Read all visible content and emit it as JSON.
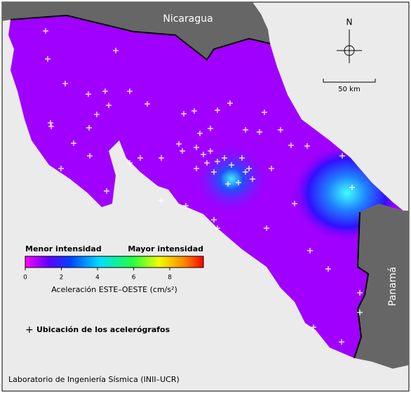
{
  "labels": {
    "north_country": "Nicaragua",
    "south_country": "Panamá",
    "north_arrow": "N",
    "scale": "50 km"
  },
  "legend": {
    "low": "Menor intensidad",
    "high": "Mayor intensidad",
    "range": [
      0,
      9.86
    ],
    "ticks": [
      0,
      2,
      4,
      6,
      8
    ],
    "title": "Aceleración ESTE–OESTE (cm/s²)",
    "stations": "Ubicación de los acelerógrafos"
  },
  "footer": "Laboratorio de Ingeniería Sísmica (INII–UCR)"
}
